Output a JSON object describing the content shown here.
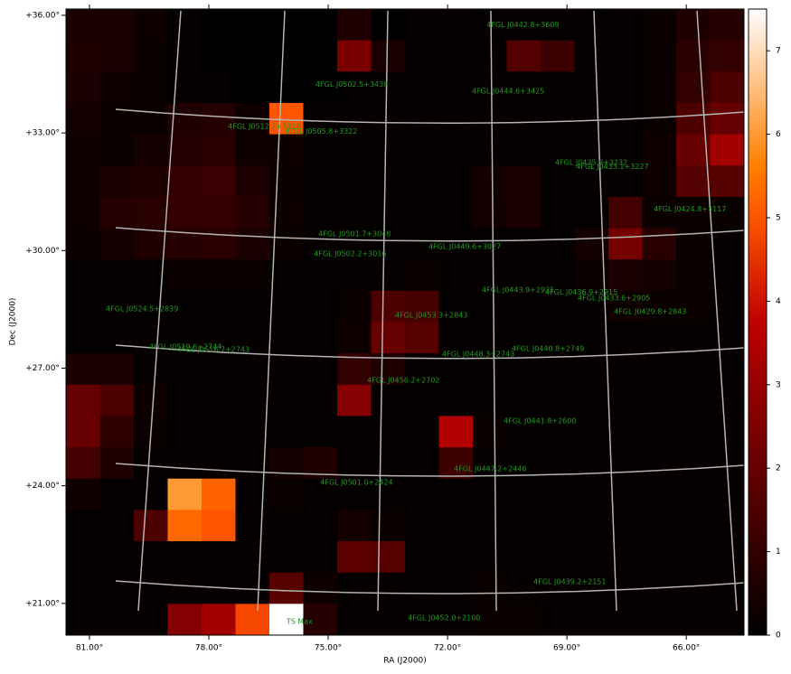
{
  "chart_data": {
    "type": "heatmap",
    "xlabel": "RA (J2000)",
    "ylabel": "Dec (J2000)",
    "xlim": [
      81.59,
      64.55
    ],
    "ylim": [
      20.19,
      36.16
    ],
    "xticks": [
      {
        "value": 81,
        "label": "81.00°"
      },
      {
        "value": 78,
        "label": "78.00°"
      },
      {
        "value": 75,
        "label": "75.00°"
      },
      {
        "value": 72,
        "label": "72.00°"
      },
      {
        "value": 69,
        "label": "69.00°"
      },
      {
        "value": 66,
        "label": "66.00°"
      }
    ],
    "yticks": [
      {
        "value": 36,
        "label": "+36.00°"
      },
      {
        "value": 33,
        "label": "+33.00°"
      },
      {
        "value": 30,
        "label": "+30.00°"
      },
      {
        "value": 27,
        "label": "+27.00°"
      },
      {
        "value": 24,
        "label": "+24.00°"
      },
      {
        "value": 21,
        "label": "+21.00°"
      }
    ],
    "colormap": "gist_heat",
    "zlim": [
      0,
      7.5
    ],
    "colorbar_ticks": [
      0,
      1,
      2,
      3,
      4,
      5,
      6,
      7
    ],
    "z": [
      [
        0.5,
        0.5,
        0.3,
        0.1,
        0,
        0,
        0,
        0,
        0.6,
        0,
        0.1,
        0.1,
        0.1,
        0.1,
        0.1,
        0.1,
        0.1,
        0.2,
        0.6,
        0.7
      ],
      [
        0.6,
        0.5,
        0.2,
        0.1,
        0,
        0,
        0,
        0,
        2.4,
        0.5,
        0.1,
        0.1,
        0.1,
        1.6,
        1.2,
        0.1,
        0.1,
        0.2,
        0.8,
        1.0
      ],
      [
        0.5,
        0.3,
        0.2,
        0.1,
        0.1,
        0,
        0,
        0,
        0.1,
        0.1,
        0.1,
        0.1,
        0.1,
        0.1,
        0.1,
        0.1,
        0.1,
        0.2,
        1.0,
        1.5
      ],
      [
        0.4,
        0.2,
        0.2,
        0.6,
        0.7,
        0.3,
        5.0,
        0.1,
        0.1,
        0.1,
        0.1,
        0.1,
        0.1,
        0.1,
        0.1,
        0.1,
        0.1,
        0.2,
        1.5,
        2.0
      ],
      [
        0.3,
        0.2,
        0.4,
        0.7,
        0.8,
        0.3,
        0.3,
        0.1,
        0.1,
        0.1,
        0.1,
        0.1,
        0.1,
        0.1,
        0.1,
        0.1,
        0.1,
        0.3,
        2.0,
        3.2
      ],
      [
        0.3,
        0.5,
        0.6,
        1.0,
        1.1,
        0.6,
        0.2,
        0.1,
        0.1,
        0.1,
        0.1,
        0.1,
        0.4,
        0.5,
        0.1,
        0.1,
        0.1,
        0.3,
        1.6,
        1.7
      ],
      [
        0.3,
        0.7,
        0.8,
        1.0,
        1.0,
        0.7,
        0.3,
        0.1,
        0.1,
        0.1,
        0.1,
        0.1,
        0.4,
        0.5,
        0.1,
        0.1,
        1.3,
        0.2,
        0.2,
        0.2
      ],
      [
        0.2,
        0.4,
        0.6,
        0.7,
        0.8,
        0.5,
        0.2,
        0.1,
        0.1,
        0.1,
        0.1,
        0.1,
        0.1,
        0.1,
        0.1,
        0.4,
        2.3,
        0.8,
        0.2,
        0.1
      ],
      [
        0.1,
        0.1,
        0.1,
        0.2,
        0.2,
        0.2,
        0.1,
        0.1,
        0.1,
        0.1,
        0.2,
        0.1,
        0.1,
        0.1,
        0.1,
        0.2,
        0.5,
        0.4,
        0.2,
        0.1
      ],
      [
        0.1,
        0.1,
        0.1,
        0.1,
        0.1,
        0.1,
        0.1,
        0.1,
        0.2,
        1.5,
        1.4,
        0.1,
        0.1,
        0.1,
        0.1,
        0.1,
        0.3,
        0.2,
        0.2,
        0.1
      ],
      [
        0.1,
        0.1,
        0.1,
        0.1,
        0.1,
        0.1,
        0.1,
        0.1,
        0.3,
        2.0,
        1.7,
        0.1,
        0.1,
        0.1,
        0.1,
        0.1,
        0.1,
        0.1,
        0.1,
        0.1
      ],
      [
        0.5,
        0.5,
        0.1,
        0.1,
        0.1,
        0.1,
        0.1,
        0.1,
        1.0,
        0.6,
        0.1,
        0.1,
        0.1,
        0.1,
        0.1,
        0.1,
        0.1,
        0.1,
        0.1,
        0.1
      ],
      [
        2.0,
        1.5,
        0.3,
        0.1,
        0.1,
        0.1,
        0.1,
        0.1,
        2.6,
        0.1,
        0.1,
        0.1,
        0.1,
        0.1,
        0.1,
        0.1,
        0.1,
        0.1,
        0.1,
        0.1
      ],
      [
        2.0,
        0.9,
        0.2,
        0.1,
        0.1,
        0.1,
        0.1,
        0.1,
        0.1,
        0.1,
        0.1,
        3.5,
        0.2,
        0.1,
        0.1,
        0.1,
        0.1,
        0.1,
        0.1,
        0.1
      ],
      [
        1.3,
        0.6,
        0.1,
        0.1,
        0.1,
        0.1,
        0.4,
        0.6,
        0.1,
        0.1,
        0.1,
        1.2,
        0.1,
        0.1,
        0.1,
        0.1,
        0.1,
        0.1,
        0.1,
        0.1
      ],
      [
        0.3,
        0.1,
        0.1,
        6.0,
        5.2,
        0.1,
        0.2,
        0.1,
        0.1,
        0.1,
        0.1,
        0.1,
        0.1,
        0.1,
        0.1,
        0.1,
        0.1,
        0.1,
        0.1,
        0.1
      ],
      [
        0.1,
        0.1,
        1.5,
        5.3,
        5.0,
        0.1,
        0.1,
        0.1,
        0.4,
        0.2,
        0.1,
        0.1,
        0.1,
        0.1,
        0.1,
        0.1,
        0.1,
        0.1,
        0.1,
        0.1
      ],
      [
        0.1,
        0.1,
        0.1,
        0.1,
        0.1,
        0.1,
        0.1,
        0.1,
        1.8,
        1.7,
        0.1,
        0.1,
        0.1,
        0.1,
        0.1,
        0.1,
        0.1,
        0.1,
        0.1,
        0.1
      ],
      [
        0.1,
        0.1,
        0.1,
        0.1,
        0.1,
        0.1,
        1.7,
        0.3,
        0.1,
        0.1,
        0.1,
        0.1,
        0.2,
        0.1,
        0.1,
        0.1,
        0.1,
        0.1,
        0.1,
        0.1
      ],
      [
        0.1,
        0.1,
        0.1,
        2.6,
        3.2,
        4.8,
        7.5,
        0.7,
        0.1,
        0.1,
        0.1,
        0.1,
        0.2,
        0.2,
        0.1,
        0.1,
        0.1,
        0.1,
        0.1,
        0.1
      ]
    ],
    "sources": [
      {
        "name": "4FGL J0442.8+3609",
        "ra": 71.02,
        "dec": 35.76
      },
      {
        "name": "4FGL J0502.5+3438",
        "ra": 75.32,
        "dec": 34.24
      },
      {
        "name": "4FGL J0444.6+3425",
        "ra": 71.39,
        "dec": 34.06
      },
      {
        "name": "4FGL J0512.2+3323",
        "ra": 77.52,
        "dec": 33.16
      },
      {
        "name": "4FGL J0505.8+3322",
        "ra": 76.09,
        "dec": 33.04
      },
      {
        "name": "4FGL J0435.8+3232",
        "ra": 69.3,
        "dec": 32.24
      },
      {
        "name": "4FGL J0433.1+3227",
        "ra": 68.77,
        "dec": 32.14
      },
      {
        "name": "4FGL J0424.8+3117",
        "ra": 66.82,
        "dec": 31.06
      },
      {
        "name": "4FGL J0501.7+3048",
        "ra": 75.25,
        "dec": 30.42
      },
      {
        "name": "4FGL J0449.6+3027",
        "ra": 72.48,
        "dec": 30.1
      },
      {
        "name": "4FGL J0502.2+3016",
        "ra": 75.36,
        "dec": 29.91
      },
      {
        "name": "4FGL J0443.9+2921",
        "ra": 71.14,
        "dec": 28.99
      },
      {
        "name": "4FGL J0436.9+2915",
        "ra": 69.55,
        "dec": 28.94
      },
      {
        "name": "4FGL J0433.6+2905",
        "ra": 68.73,
        "dec": 28.78
      },
      {
        "name": "4FGL J0429.8+2843",
        "ra": 67.82,
        "dec": 28.44
      },
      {
        "name": "4FGL J0524.5+2839",
        "ra": 80.59,
        "dec": 28.51
      },
      {
        "name": "4FGL J0453.3+2843",
        "ra": 73.32,
        "dec": 28.35
      },
      {
        "name": "4FGL J0519.6+2744",
        "ra": 79.5,
        "dec": 27.54
      },
      {
        "name": "4FGL J0516.7+2743",
        "ra": 78.8,
        "dec": 27.47
      },
      {
        "name": "4FGL J0440.8+2749",
        "ra": 70.39,
        "dec": 27.49
      },
      {
        "name": "4FGL J0448.3+2743",
        "ra": 72.14,
        "dec": 27.36
      },
      {
        "name": "4FGL J0456.2+2702",
        "ra": 74.02,
        "dec": 26.69
      },
      {
        "name": "4FGL J0441.8+2600",
        "ra": 70.59,
        "dec": 25.65
      },
      {
        "name": "4FGL J0447.2+2446",
        "ra": 71.84,
        "dec": 24.43
      },
      {
        "name": "4FGL J0501.0+2424",
        "ra": 75.2,
        "dec": 24.09
      },
      {
        "name": "4FGL J0439.2+2151",
        "ra": 69.84,
        "dec": 21.55
      },
      {
        "name": "4FGL J0452.0+2100",
        "ra": 73.0,
        "dec": 20.63
      },
      {
        "name": "TS Max",
        "ra": 76.05,
        "dec": 20.54
      }
    ]
  }
}
